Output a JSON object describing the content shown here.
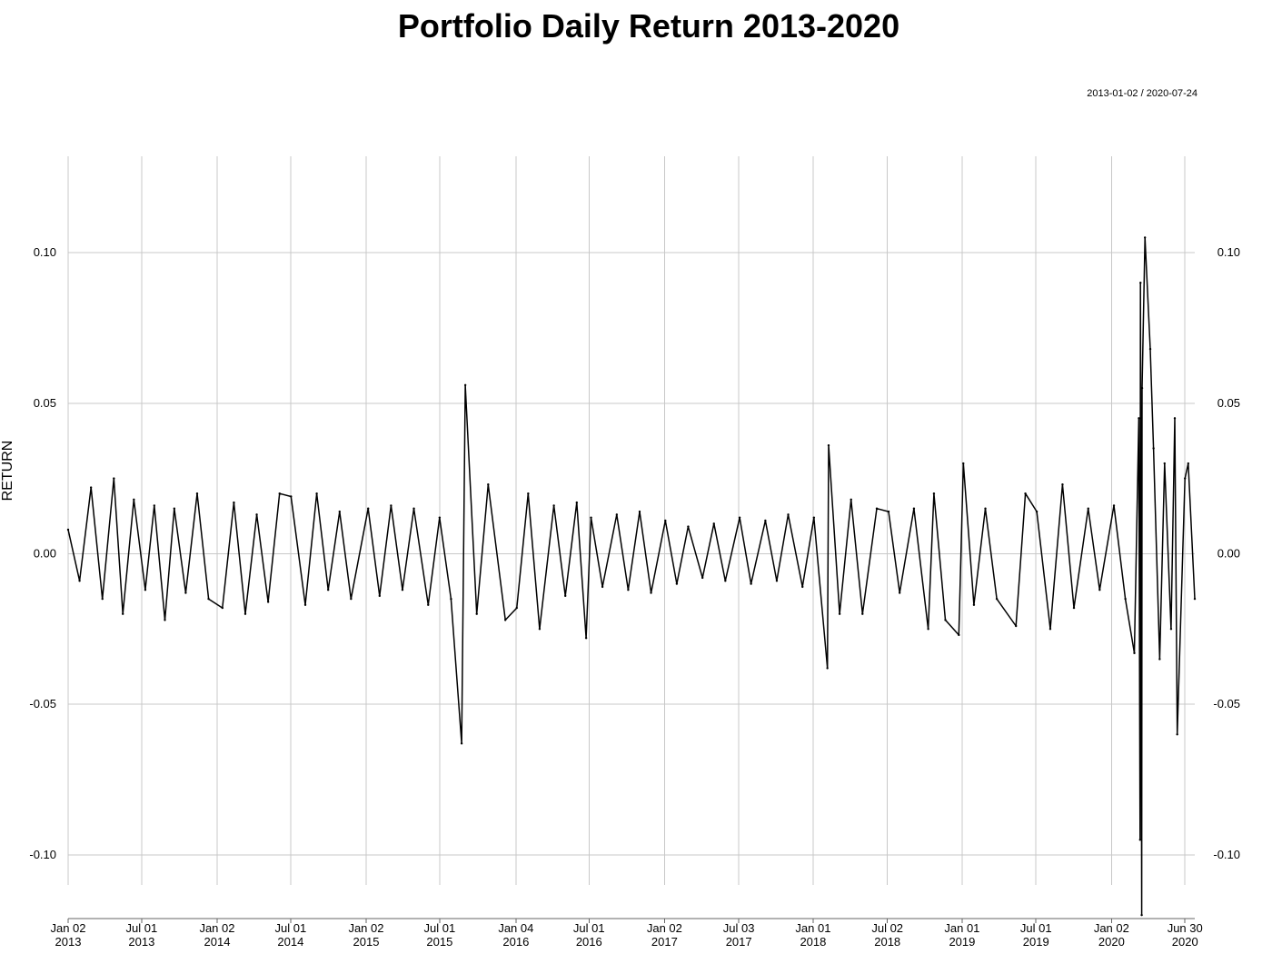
{
  "chart_data": {
    "type": "line",
    "title": "Portfolio Daily Return 2013-2020",
    "date_range_label": "2013-01-02 / 2020-07-24",
    "ylabel": "RETURN",
    "xlabel": "",
    "x_range": [
      "2013-01-02",
      "2020-07-24"
    ],
    "ylim": [
      -0.11,
      0.132
    ],
    "y_ticks": [
      {
        "value": 0.1,
        "label": "0.10"
      },
      {
        "value": 0.05,
        "label": "0.05"
      },
      {
        "value": 0.0,
        "label": "0.00"
      },
      {
        "value": -0.05,
        "label": "-0.05"
      },
      {
        "value": -0.1,
        "label": "-0.10"
      }
    ],
    "x_ticks": [
      {
        "date": "2013-01-02",
        "line1": "Jan 02",
        "line2": "2013"
      },
      {
        "date": "2013-07-01",
        "line1": "Jul 01",
        "line2": "2013"
      },
      {
        "date": "2014-01-02",
        "line1": "Jan 02",
        "line2": "2014"
      },
      {
        "date": "2014-07-01",
        "line1": "Jul 01",
        "line2": "2014"
      },
      {
        "date": "2015-01-02",
        "line1": "Jan 02",
        "line2": "2015"
      },
      {
        "date": "2015-07-01",
        "line1": "Jul 01",
        "line2": "2015"
      },
      {
        "date": "2016-01-04",
        "line1": "Jan 04",
        "line2": "2016"
      },
      {
        "date": "2016-07-01",
        "line1": "Jul 01",
        "line2": "2016"
      },
      {
        "date": "2017-01-02",
        "line1": "Jan 02",
        "line2": "2017"
      },
      {
        "date": "2017-07-03",
        "line1": "Jul 03",
        "line2": "2017"
      },
      {
        "date": "2018-01-01",
        "line1": "Jan 01",
        "line2": "2018"
      },
      {
        "date": "2018-07-02",
        "line1": "Jul 02",
        "line2": "2018"
      },
      {
        "date": "2019-01-01",
        "line1": "Jan 01",
        "line2": "2019"
      },
      {
        "date": "2019-07-01",
        "line1": "Jul 01",
        "line2": "2019"
      },
      {
        "date": "2020-01-02",
        "line1": "Jan 02",
        "line2": "2020"
      },
      {
        "date": "2020-06-30",
        "line1": "Jun 30",
        "line2": "2020"
      }
    ],
    "grid": true,
    "series": [
      {
        "color": "#000000",
        "x": [
          "2013-01-02",
          "2013-01-30",
          "2013-02-27",
          "2013-03-27",
          "2013-04-24",
          "2013-05-16",
          "2013-06-12",
          "2013-07-10",
          "2013-08-01",
          "2013-08-27",
          "2013-09-19",
          "2013-10-17",
          "2013-11-14",
          "2013-12-12",
          "2014-01-15",
          "2014-02-12",
          "2014-03-12",
          "2014-04-09",
          "2014-05-07",
          "2014-06-04",
          "2014-07-02",
          "2014-08-06",
          "2014-09-03",
          "2014-10-01",
          "2014-10-29",
          "2014-11-26",
          "2015-01-07",
          "2015-02-04",
          "2015-03-04",
          "2015-04-01",
          "2015-04-29",
          "2015-06-03",
          "2015-07-01",
          "2015-07-29",
          "2015-08-24",
          "2015-09-02",
          "2015-09-30",
          "2015-10-28",
          "2015-12-09",
          "2016-01-06",
          "2016-02-03",
          "2016-03-02",
          "2016-04-06",
          "2016-05-04",
          "2016-06-01",
          "2016-06-24",
          "2016-07-06",
          "2016-08-03",
          "2016-09-07",
          "2016-10-05",
          "2016-11-02",
          "2016-11-30",
          "2017-01-04",
          "2017-02-01",
          "2017-03-01",
          "2017-04-05",
          "2017-05-03",
          "2017-05-31",
          "2017-07-05",
          "2017-08-02",
          "2017-09-06",
          "2017-10-04",
          "2017-11-01",
          "2017-12-06",
          "2018-01-03",
          "2018-02-05",
          "2018-02-08",
          "2018-03-07",
          "2018-04-04",
          "2018-05-02",
          "2018-06-06",
          "2018-07-05",
          "2018-08-01",
          "2018-09-05",
          "2018-10-10",
          "2018-10-24",
          "2018-11-21",
          "2018-12-24",
          "2019-01-04",
          "2019-01-30",
          "2019-02-27",
          "2019-03-27",
          "2019-05-13",
          "2019-06-05",
          "2019-07-03",
          "2019-08-05",
          "2019-09-04",
          "2019-10-02",
          "2019-11-06",
          "2019-12-04",
          "2020-01-08",
          "2020-02-05",
          "2020-02-27",
          "2020-03-09",
          "2020-03-12",
          "2020-03-13",
          "2020-03-16",
          "2020-03-17",
          "2020-03-24",
          "2020-04-06",
          "2020-04-14",
          "2020-04-29",
          "2020-05-11",
          "2020-05-27",
          "2020-06-05",
          "2020-06-11",
          "2020-06-30",
          "2020-07-08",
          "2020-07-24"
        ],
        "y": [
          0.008,
          -0.009,
          0.022,
          -0.015,
          0.025,
          -0.02,
          0.018,
          -0.012,
          0.016,
          -0.022,
          0.015,
          -0.013,
          0.02,
          -0.015,
          -0.018,
          0.017,
          -0.02,
          0.013,
          -0.016,
          0.02,
          0.019,
          -0.017,
          0.02,
          -0.012,
          0.014,
          -0.015,
          0.015,
          -0.014,
          0.016,
          -0.012,
          0.015,
          -0.017,
          0.012,
          -0.015,
          -0.063,
          0.056,
          -0.02,
          0.023,
          -0.022,
          -0.018,
          0.02,
          -0.025,
          0.016,
          -0.014,
          0.017,
          -0.028,
          0.012,
          -0.011,
          0.013,
          -0.012,
          0.014,
          -0.013,
          0.011,
          -0.01,
          0.009,
          -0.008,
          0.01,
          -0.009,
          0.012,
          -0.01,
          0.011,
          -0.009,
          0.013,
          -0.011,
          0.012,
          -0.038,
          0.036,
          -0.02,
          0.018,
          -0.02,
          0.015,
          0.014,
          -0.013,
          0.015,
          -0.025,
          0.02,
          -0.022,
          -0.027,
          0.03,
          -0.017,
          0.015,
          -0.015,
          -0.024,
          0.02,
          0.014,
          -0.025,
          0.023,
          -0.018,
          0.015,
          -0.012,
          0.016,
          -0.015,
          -0.033,
          0.045,
          -0.095,
          0.09,
          -0.12,
          0.055,
          0.105,
          0.068,
          0.035,
          -0.035,
          0.03,
          -0.025,
          0.045,
          -0.06,
          0.025,
          0.03,
          -0.015
        ],
        "note": ""
      }
    ]
  }
}
